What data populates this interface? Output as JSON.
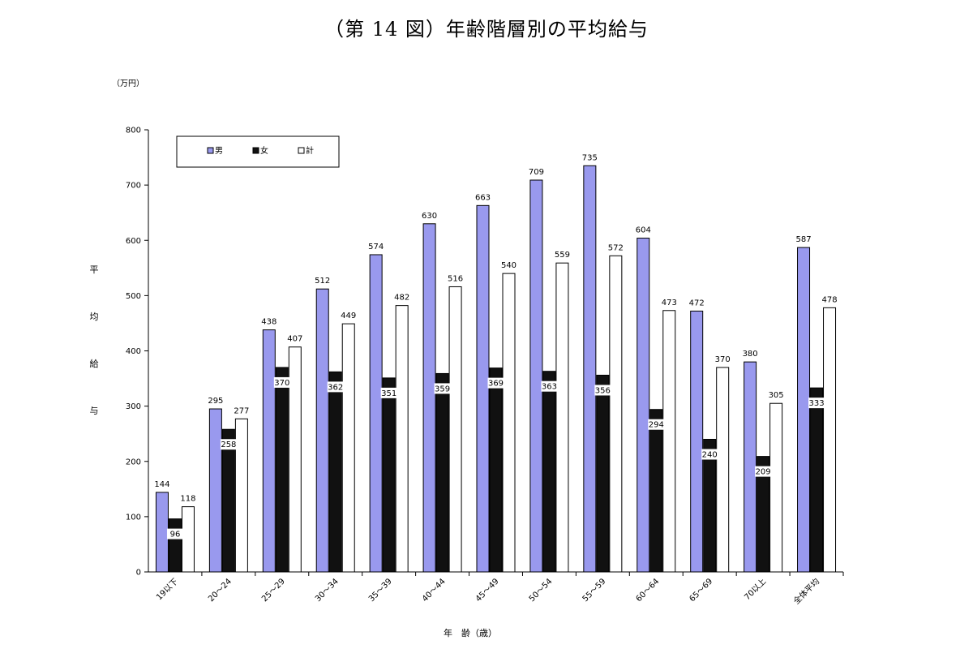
{
  "chart_data": {
    "type": "bar",
    "title": "（第 14 図）年齢階層別の平均給与",
    "unit_label": "（万円）",
    "ylabel": "平均給与",
    "xlabel": "年　齢（歳）",
    "ylim": [
      0,
      800
    ],
    "yticks": [
      0,
      100,
      200,
      300,
      400,
      500,
      600,
      700,
      800
    ],
    "grid": false,
    "legend_position": "top-left",
    "categories": [
      "19以下",
      "20～24",
      "25～29",
      "30～34",
      "35～39",
      "40～44",
      "45～49",
      "50～54",
      "55～59",
      "60～64",
      "65～69",
      "70以上",
      "全体平均"
    ],
    "series": [
      {
        "name": "男",
        "color": "#9999ee",
        "values": [
          144,
          295,
          438,
          512,
          574,
          630,
          663,
          709,
          735,
          604,
          472,
          380,
          587
        ]
      },
      {
        "name": "女",
        "color": "#111111",
        "values": [
          96,
          258,
          370,
          362,
          351,
          359,
          369,
          363,
          356,
          294,
          240,
          209,
          333
        ]
      },
      {
        "name": "計",
        "color": "#ffffff",
        "values": [
          118,
          277,
          407,
          449,
          482,
          516,
          540,
          559,
          572,
          473,
          370,
          305,
          478
        ]
      }
    ]
  }
}
